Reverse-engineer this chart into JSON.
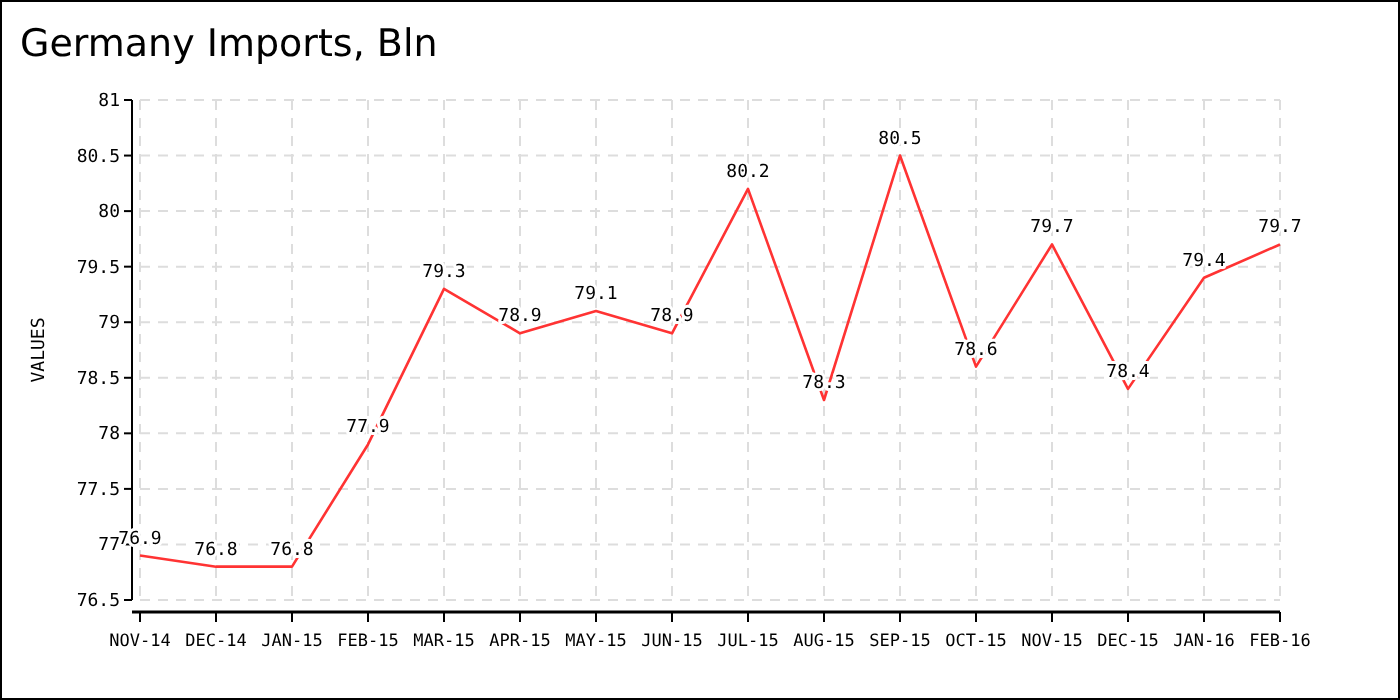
{
  "chart_data": {
    "type": "line",
    "title": "Germany Imports, Bln",
    "ylabel": "VALUES",
    "categories": [
      "NOV-14",
      "DEC-14",
      "JAN-15",
      "FEB-15",
      "MAR-15",
      "APR-15",
      "MAY-15",
      "JUN-15",
      "JUL-15",
      "AUG-15",
      "SEP-15",
      "OCT-15",
      "NOV-15",
      "DEC-15",
      "JAN-16",
      "FEB-16"
    ],
    "series": [
      {
        "color": "#ff3333",
        "values": [
          76.9,
          76.8,
          76.8,
          77.9,
          79.3,
          78.9,
          79.1,
          78.9,
          80.2,
          78.3,
          80.5,
          78.6,
          79.7,
          78.4,
          79.4,
          79.7
        ]
      }
    ],
    "ylim": [
      76.5,
      81
    ],
    "yticks": [
      76.5,
      77,
      77.5,
      78,
      78.5,
      79,
      79.5,
      80,
      80.5,
      81
    ],
    "grid": true,
    "data_labels": true,
    "line_style": "solid",
    "marker": "none"
  }
}
